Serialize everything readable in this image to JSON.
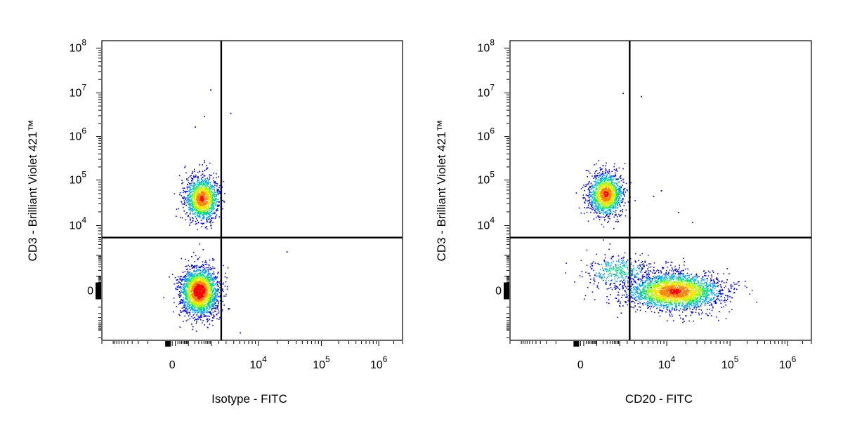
{
  "chart_data": [
    {
      "type": "scatter",
      "subtype": "flow-cytometry-density-dot-plot",
      "title": "",
      "xlabel": "Isotype - FITC",
      "ylabel": "CD3 - Brilliant Violet 421™",
      "x_scale": "biexponential",
      "y_scale": "biexponential",
      "x_ticks": [
        {
          "value": 0,
          "base": "0",
          "exp": ""
        },
        {
          "value": 10000,
          "base": "10",
          "exp": "4"
        },
        {
          "value": 100000,
          "base": "10",
          "exp": "5"
        },
        {
          "value": 1000000,
          "base": "10",
          "exp": "6"
        }
      ],
      "y_ticks": [
        {
          "value": 0,
          "base": "0",
          "exp": ""
        },
        {
          "value": 10000,
          "base": "10",
          "exp": "4"
        },
        {
          "value": 100000,
          "base": "10",
          "exp": "5"
        },
        {
          "value": 1000000,
          "base": "10",
          "exp": "6"
        },
        {
          "value": 10000000,
          "base": "10",
          "exp": "7"
        },
        {
          "value": 100000000,
          "base": "10",
          "exp": "8"
        }
      ],
      "quadrant_gate": {
        "x": 2500,
        "y": 6000
      },
      "populations": [
        {
          "x_center": 400,
          "y_center": 40000,
          "n": 1300,
          "relative_density": "high"
        },
        {
          "x_center": 300,
          "y_center": 0,
          "n": 2100,
          "relative_density": "very high"
        }
      ],
      "sparse_events": [
        {
          "x": 900,
          "y": 12000000
        },
        {
          "x": 500,
          "y": 3000000
        },
        {
          "x": 200,
          "y": 1700000
        },
        {
          "x": 3500,
          "y": 3500000
        },
        {
          "x": 28000,
          "y": 1500
        },
        {
          "x": 5000,
          "y": -1200
        }
      ],
      "color_scale": [
        "#0000ff",
        "#00a0ff",
        "#00e080",
        "#a0ff00",
        "#ffe000",
        "#ff8000",
        "#ff0000"
      ]
    },
    {
      "type": "scatter",
      "subtype": "flow-cytometry-density-dot-plot",
      "title": "",
      "xlabel": "CD20 - FITC",
      "ylabel": "CD3 - Brilliant Violet 421™",
      "x_scale": "biexponential",
      "y_scale": "biexponential",
      "x_ticks": [
        {
          "value": 0,
          "base": "0",
          "exp": ""
        },
        {
          "value": 10000,
          "base": "10",
          "exp": "4"
        },
        {
          "value": 100000,
          "base": "10",
          "exp": "5"
        },
        {
          "value": 1000000,
          "base": "10",
          "exp": "6"
        }
      ],
      "y_ticks": [
        {
          "value": 0,
          "base": "0",
          "exp": ""
        },
        {
          "value": 10000,
          "base": "10",
          "exp": "4"
        },
        {
          "value": 100000,
          "base": "10",
          "exp": "5"
        },
        {
          "value": 1000000,
          "base": "10",
          "exp": "6"
        },
        {
          "value": 10000000,
          "base": "10",
          "exp": "7"
        },
        {
          "value": 100000000,
          "base": "10",
          "exp": "8"
        }
      ],
      "quadrant_gate": {
        "x": 2500,
        "y": 6000
      },
      "populations": [
        {
          "x_center": 250,
          "y_center": 50000,
          "n": 1300,
          "relative_density": "high"
        },
        {
          "x_center": 13000,
          "y_center": 0,
          "n": 2400,
          "relative_density": "high"
        },
        {
          "x_center": 800,
          "y_center": 200,
          "n": 350,
          "relative_density": "low"
        }
      ],
      "sparse_events": [
        {
          "x": 1300,
          "y": 10000000
        },
        {
          "x": 3800,
          "y": 8500000
        },
        {
          "x": 6000,
          "y": 45000
        },
        {
          "x": 8000,
          "y": 60000
        },
        {
          "x": 15000,
          "y": 20000
        },
        {
          "x": 25000,
          "y": 12000
        }
      ],
      "color_scale": [
        "#0000ff",
        "#00a0ff",
        "#00e080",
        "#a0ff00",
        "#ffe000",
        "#ff8000",
        "#ff0000"
      ]
    }
  ]
}
